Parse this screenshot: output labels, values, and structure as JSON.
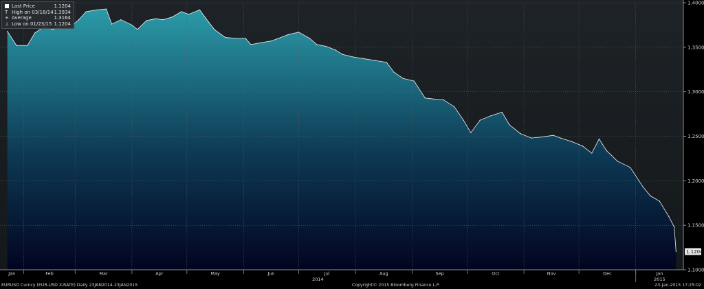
{
  "legend": {
    "items": [
      {
        "symbol": "box",
        "label": "Last Price",
        "value": "1.1204"
      },
      {
        "symbol": "T",
        "label": "High on 03/18/14",
        "value": "1.3934"
      },
      {
        "symbol": "+",
        "label": "Average",
        "value": "1.3164"
      },
      {
        "symbol": "⊥",
        "label": "Low on 01/23/15",
        "value": "1.1204"
      }
    ]
  },
  "footer": {
    "left": "EURUSD Curncy (EUR-USD X-RATE)  Daily 23JAN2014-23JAN2015",
    "center": "Copyright© 2015 Bloomberg Finance L.P.",
    "right": "23-Jan-2015 17:25:02"
  },
  "colors": {
    "background": "#000000",
    "plot_top": "#1e2327",
    "area_top": "#2b9ba8",
    "area_bottom": "#020420",
    "line": "#f2f2f2",
    "grid": "#5a5f66"
  },
  "chart_data": {
    "type": "area",
    "ylim": [
      1.1,
      1.4
    ],
    "y_ticks": [
      "1.1000",
      "1.1500",
      "1.2000",
      "1.2500",
      "1.3000",
      "1.3500",
      "1.4000"
    ],
    "y_tick_values": [
      1.1,
      1.15,
      1.2,
      1.25,
      1.3,
      1.35,
      1.4
    ],
    "x_ticks": [
      "Jan",
      "Feb",
      "Mar",
      "Apr",
      "May",
      "Jun",
      "Jul",
      "Aug",
      "Sep",
      "Oct",
      "Nov",
      "Dec",
      "Jan"
    ],
    "x_tick_months": [
      "2014-01",
      "2014-02",
      "2014-03",
      "2014-04",
      "2014-05",
      "2014-06",
      "2014-07",
      "2014-08",
      "2014-09",
      "2014-10",
      "2014-11",
      "2014-12",
      "2015-01"
    ],
    "year_labels": [
      "2014",
      "2015"
    ],
    "last_price_label": "1.1204",
    "series": [
      {
        "x": [
          "2014-01-23",
          "2014-01-28",
          "2014-02-03",
          "2014-02-07",
          "2014-02-12",
          "2014-02-17",
          "2014-02-21",
          "2014-02-26",
          "2014-03-03",
          "2014-03-07",
          "2014-03-13",
          "2014-03-18",
          "2014-03-21",
          "2014-03-26",
          "2014-04-01",
          "2014-04-04",
          "2014-04-09",
          "2014-04-14",
          "2014-04-18",
          "2014-04-23",
          "2014-04-28",
          "2014-05-02",
          "2014-05-08",
          "2014-05-13",
          "2014-05-16",
          "2014-05-22",
          "2014-05-28",
          "2014-06-02",
          "2014-06-05",
          "2014-06-10",
          "2014-06-16",
          "2014-06-20",
          "2014-06-25",
          "2014-07-01",
          "2014-07-07",
          "2014-07-11",
          "2014-07-16",
          "2014-07-21",
          "2014-07-25",
          "2014-07-31",
          "2014-08-06",
          "2014-08-12",
          "2014-08-18",
          "2014-08-22",
          "2014-08-27",
          "2014-09-02",
          "2014-09-08",
          "2014-09-12",
          "2014-09-18",
          "2014-09-24",
          "2014-09-29",
          "2014-10-03",
          "2014-10-08",
          "2014-10-14",
          "2014-10-20",
          "2014-10-24",
          "2014-10-30",
          "2014-11-05",
          "2014-11-10",
          "2014-11-17",
          "2014-11-21",
          "2014-11-27",
          "2014-12-03",
          "2014-12-08",
          "2014-12-12",
          "2014-12-16",
          "2014-12-22",
          "2014-12-29",
          "2015-01-05",
          "2015-01-09",
          "2015-01-14",
          "2015-01-19",
          "2015-01-22",
          "2015-01-23"
        ],
        "y": [
          1.368,
          1.352,
          1.352,
          1.366,
          1.373,
          1.37,
          1.375,
          1.372,
          1.381,
          1.39,
          1.392,
          1.393,
          1.376,
          1.381,
          1.375,
          1.37,
          1.38,
          1.382,
          1.381,
          1.384,
          1.39,
          1.387,
          1.392,
          1.378,
          1.37,
          1.361,
          1.36,
          1.36,
          1.353,
          1.355,
          1.357,
          1.36,
          1.364,
          1.367,
          1.36,
          1.353,
          1.351,
          1.347,
          1.342,
          1.339,
          1.337,
          1.335,
          1.333,
          1.322,
          1.315,
          1.312,
          1.293,
          1.292,
          1.291,
          1.283,
          1.268,
          1.254,
          1.268,
          1.273,
          1.277,
          1.263,
          1.253,
          1.248,
          1.249,
          1.251,
          1.248,
          1.244,
          1.239,
          1.231,
          1.247,
          1.234,
          1.222,
          1.215,
          1.193,
          1.183,
          1.177,
          1.16,
          1.148,
          1.1204
        ]
      }
    ]
  }
}
